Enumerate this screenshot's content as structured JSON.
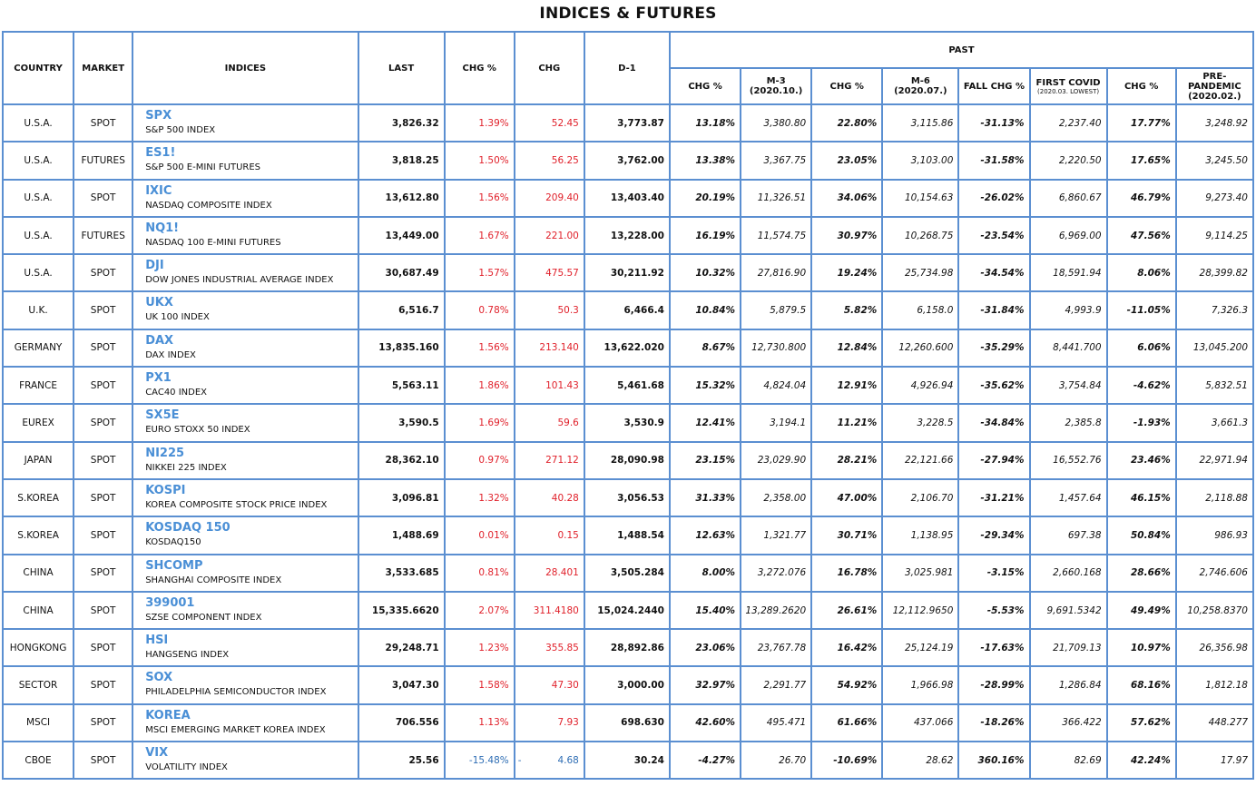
{
  "title": "INDICES & FUTURES",
  "headers": {
    "country": "COUNTRY",
    "market": "MARKET",
    "indices": "INDICES",
    "last": "LAST",
    "chg_pct": "CHG %",
    "chg": "CHG",
    "d1": "D-1",
    "past": "PAST",
    "p_chg1": "CHG %",
    "m3": "M-3",
    "m3_sub": "(2020.10.)",
    "p_chg2": "CHG %",
    "m6": "M-6",
    "m6_sub": "(2020.07.)",
    "fall_chg": "FALL CHG %",
    "first_covid": "FIRST COVID",
    "first_covid_sub": "(2020.03. LOWEST)",
    "p_chg3": "CHG %",
    "prepandemic": "PRE-PANDEMIC",
    "prepandemic_sub": "(2020.02.)"
  },
  "colors": {
    "border": "#5b8fd1",
    "code": "#4a8fd6",
    "positive": "#e0202a",
    "negative": "#2e6db4"
  },
  "rows": [
    {
      "country": "U.S.A.",
      "market": "SPOT",
      "code": "SPX",
      "name": "S&P 500 INDEX",
      "last": "3,826.32",
      "chg_pct": "1.39%",
      "chg": "52.45",
      "d1": "3,773.87",
      "p1": "13.18%",
      "m3": "3,380.80",
      "p2": "22.80%",
      "m6": "3,115.86",
      "fall": "-31.13%",
      "covid": "2,237.40",
      "p3": "17.77%",
      "pre": "3,248.92",
      "dir": "up"
    },
    {
      "country": "U.S.A.",
      "market": "FUTURES",
      "code": "ES1!",
      "name": "S&P 500 E-MINI FUTURES",
      "last": "3,818.25",
      "chg_pct": "1.50%",
      "chg": "56.25",
      "d1": "3,762.00",
      "p1": "13.38%",
      "m3": "3,367.75",
      "p2": "23.05%",
      "m6": "3,103.00",
      "fall": "-31.58%",
      "covid": "2,220.50",
      "p3": "17.65%",
      "pre": "3,245.50",
      "dir": "up"
    },
    {
      "country": "U.S.A.",
      "market": "SPOT",
      "code": "IXIC",
      "name": "NASDAQ COMPOSITE INDEX",
      "last": "13,612.80",
      "chg_pct": "1.56%",
      "chg": "209.40",
      "d1": "13,403.40",
      "p1": "20.19%",
      "m3": "11,326.51",
      "p2": "34.06%",
      "m6": "10,154.63",
      "fall": "-26.02%",
      "covid": "6,860.67",
      "p3": "46.79%",
      "pre": "9,273.40",
      "dir": "up"
    },
    {
      "country": "U.S.A.",
      "market": "FUTURES",
      "code": "NQ1!",
      "name": "NASDAQ 100 E-MINI FUTURES",
      "last": "13,449.00",
      "chg_pct": "1.67%",
      "chg": "221.00",
      "d1": "13,228.00",
      "p1": "16.19%",
      "m3": "11,574.75",
      "p2": "30.97%",
      "m6": "10,268.75",
      "fall": "-23.54%",
      "covid": "6,969.00",
      "p3": "47.56%",
      "pre": "9,114.25",
      "dir": "up"
    },
    {
      "country": "U.S.A.",
      "market": "SPOT",
      "code": "DJI",
      "name": "DOW JONES INDUSTRIAL AVERAGE INDEX",
      "last": "30,687.49",
      "chg_pct": "1.57%",
      "chg": "475.57",
      "d1": "30,211.92",
      "p1": "10.32%",
      "m3": "27,816.90",
      "p2": "19.24%",
      "m6": "25,734.98",
      "fall": "-34.54%",
      "covid": "18,591.94",
      "p3": "8.06%",
      "pre": "28,399.82",
      "dir": "up"
    },
    {
      "country": "U.K.",
      "market": "SPOT",
      "code": "UKX",
      "name": "UK 100 INDEX",
      "last": "6,516.7",
      "chg_pct": "0.78%",
      "chg": "50.3",
      "d1": "6,466.4",
      "p1": "10.84%",
      "m3": "5,879.5",
      "p2": "5.82%",
      "m6": "6,158.0",
      "fall": "-31.84%",
      "covid": "4,993.9",
      "p3": "-11.05%",
      "pre": "7,326.3",
      "dir": "up"
    },
    {
      "country": "GERMANY",
      "market": "SPOT",
      "code": "DAX",
      "name": "DAX INDEX",
      "last": "13,835.160",
      "chg_pct": "1.56%",
      "chg": "213.140",
      "d1": "13,622.020",
      "p1": "8.67%",
      "m3": "12,730.800",
      "p2": "12.84%",
      "m6": "12,260.600",
      "fall": "-35.29%",
      "covid": "8,441.700",
      "p3": "6.06%",
      "pre": "13,045.200",
      "dir": "up"
    },
    {
      "country": "FRANCE",
      "market": "SPOT",
      "code": "PX1",
      "name": "CAC40 INDEX",
      "last": "5,563.11",
      "chg_pct": "1.86%",
      "chg": "101.43",
      "d1": "5,461.68",
      "p1": "15.32%",
      "m3": "4,824.04",
      "p2": "12.91%",
      "m6": "4,926.94",
      "fall": "-35.62%",
      "covid": "3,754.84",
      "p3": "-4.62%",
      "pre": "5,832.51",
      "dir": "up"
    },
    {
      "country": "EUREX",
      "market": "SPOT",
      "code": "SX5E",
      "name": "EURO STOXX 50 INDEX",
      "last": "3,590.5",
      "chg_pct": "1.69%",
      "chg": "59.6",
      "d1": "3,530.9",
      "p1": "12.41%",
      "m3": "3,194.1",
      "p2": "11.21%",
      "m6": "3,228.5",
      "fall": "-34.84%",
      "covid": "2,385.8",
      "p3": "-1.93%",
      "pre": "3,661.3",
      "dir": "up"
    },
    {
      "country": "JAPAN",
      "market": "SPOT",
      "code": "NI225",
      "name": "NIKKEI 225 INDEX",
      "last": "28,362.10",
      "chg_pct": "0.97%",
      "chg": "271.12",
      "d1": "28,090.98",
      "p1": "23.15%",
      "m3": "23,029.90",
      "p2": "28.21%",
      "m6": "22,121.66",
      "fall": "-27.94%",
      "covid": "16,552.76",
      "p3": "23.46%",
      "pre": "22,971.94",
      "dir": "up"
    },
    {
      "country": "S.KOREA",
      "market": "SPOT",
      "code": "KOSPI",
      "name": "KOREA COMPOSITE STOCK PRICE INDEX",
      "last": "3,096.81",
      "chg_pct": "1.32%",
      "chg": "40.28",
      "d1": "3,056.53",
      "p1": "31.33%",
      "m3": "2,358.00",
      "p2": "47.00%",
      "m6": "2,106.70",
      "fall": "-31.21%",
      "covid": "1,457.64",
      "p3": "46.15%",
      "pre": "2,118.88",
      "dir": "up"
    },
    {
      "country": "S.KOREA",
      "market": "SPOT",
      "code": "KOSDAQ 150",
      "name": "KOSDAQ150",
      "last": "1,488.69",
      "chg_pct": "0.01%",
      "chg": "0.15",
      "d1": "1,488.54",
      "p1": "12.63%",
      "m3": "1,321.77",
      "p2": "30.71%",
      "m6": "1,138.95",
      "fall": "-29.34%",
      "covid": "697.38",
      "p3": "50.84%",
      "pre": "986.93",
      "dir": "up"
    },
    {
      "country": "CHINA",
      "market": "SPOT",
      "code": "SHCOMP",
      "name": "SHANGHAI COMPOSITE INDEX",
      "last": "3,533.685",
      "chg_pct": "0.81%",
      "chg": "28.401",
      "d1": "3,505.284",
      "p1": "8.00%",
      "m3": "3,272.076",
      "p2": "16.78%",
      "m6": "3,025.981",
      "fall": "-3.15%",
      "covid": "2,660.168",
      "p3": "28.66%",
      "pre": "2,746.606",
      "dir": "up"
    },
    {
      "country": "CHINA",
      "market": "SPOT",
      "code": "399001",
      "name": "SZSE COMPONENT INDEX",
      "last": "15,335.6620",
      "chg_pct": "2.07%",
      "chg": "311.4180",
      "d1": "15,024.2440",
      "p1": "15.40%",
      "m3": "13,289.2620",
      "p2": "26.61%",
      "m6": "12,112.9650",
      "fall": "-5.53%",
      "covid": "9,691.5342",
      "p3": "49.49%",
      "pre": "10,258.8370",
      "dir": "up"
    },
    {
      "country": "HONGKONG",
      "market": "SPOT",
      "code": "HSI",
      "name": "HANGSENG INDEX",
      "last": "29,248.71",
      "chg_pct": "1.23%",
      "chg": "355.85",
      "d1": "28,892.86",
      "p1": "23.06%",
      "m3": "23,767.78",
      "p2": "16.42%",
      "m6": "25,124.19",
      "fall": "-17.63%",
      "covid": "21,709.13",
      "p3": "10.97%",
      "pre": "26,356.98",
      "dir": "up"
    },
    {
      "country": "SECTOR",
      "market": "SPOT",
      "code": "SOX",
      "name": "PHILADELPHIA SEMICONDUCTOR INDEX",
      "last": "3,047.30",
      "chg_pct": "1.58%",
      "chg": "47.30",
      "d1": "3,000.00",
      "p1": "32.97%",
      "m3": "2,291.77",
      "p2": "54.92%",
      "m6": "1,966.98",
      "fall": "-28.99%",
      "covid": "1,286.84",
      "p3": "68.16%",
      "pre": "1,812.18",
      "dir": "up"
    },
    {
      "country": "MSCI",
      "market": "SPOT",
      "code": "KOREA",
      "name": "MSCI EMERGING MARKET KOREA INDEX",
      "last": "706.556",
      "chg_pct": "1.13%",
      "chg": "7.93",
      "d1": "698.630",
      "p1": "42.60%",
      "m3": "495.471",
      "p2": "61.66%",
      "m6": "437.066",
      "fall": "-18.26%",
      "covid": "366.422",
      "p3": "57.62%",
      "pre": "448.277",
      "dir": "up"
    },
    {
      "country": "CBOE",
      "market": "SPOT",
      "code": "VIX",
      "name": "VOLATILITY INDEX",
      "last": "25.56",
      "chg_pct": "-15.48%",
      "chg": "4.68",
      "chg_prefix": "-",
      "d1": "30.24",
      "p1": "-4.27%",
      "m3": "26.70",
      "p2": "-10.69%",
      "m6": "28.62",
      "fall": "360.16%",
      "covid": "82.69",
      "p3": "42.24%",
      "pre": "17.97",
      "dir": "down"
    }
  ]
}
